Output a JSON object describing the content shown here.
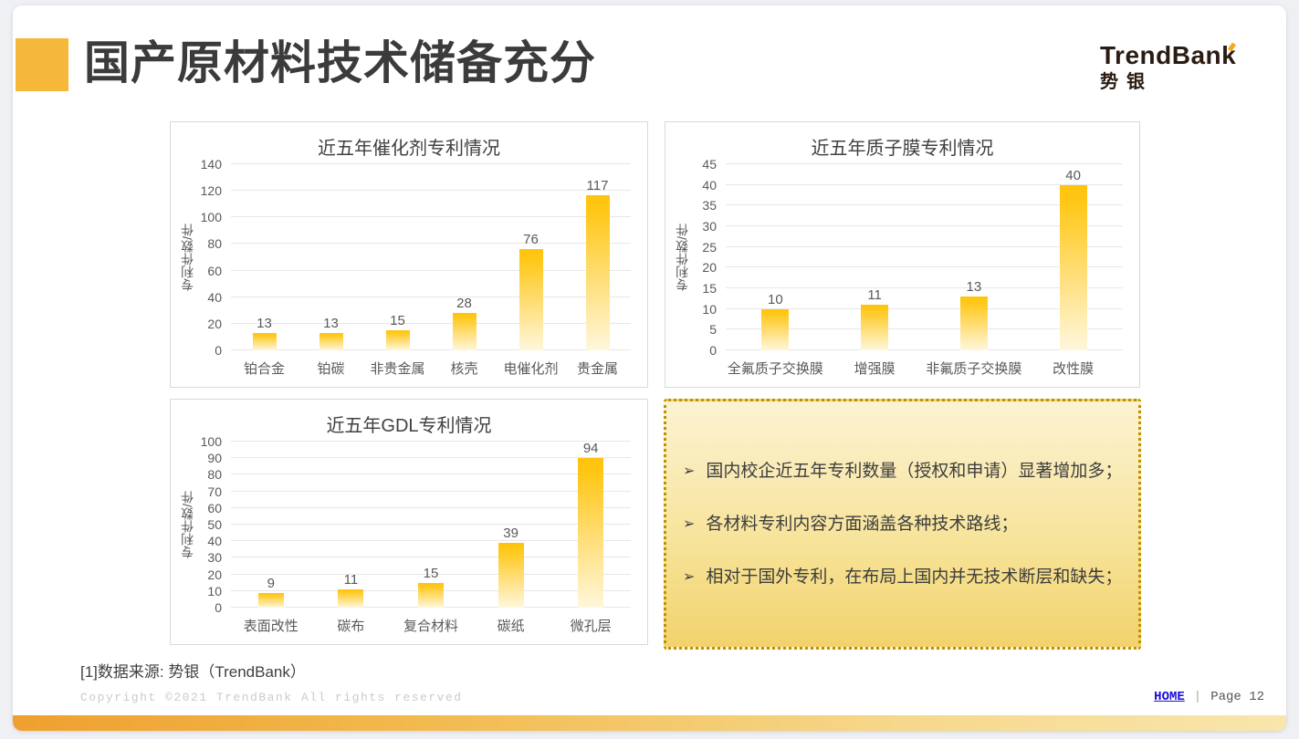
{
  "slide": {
    "title": "国产原材料技术储备充分",
    "logo": {
      "name": "TrendBank",
      "subtitle": "势银"
    },
    "footer": {
      "source": "[1]数据来源: 势银（TrendBank）",
      "copyright": "Copyright ©2021 TrendBank All rights reserved",
      "home_label": "HOME",
      "separator": "|",
      "page_label": "Page 12"
    },
    "colors": {
      "accent_yellow": "#F5B83B",
      "bar_gradient_top": "#FFC30D",
      "bar_gradient_bottom": "#FFF7DC",
      "note_border": "#BF9000",
      "note_bg_top": "#FCF3D3",
      "note_bg_bottom": "#F2D26C",
      "link_blue": "#1a0dd8",
      "bottom_bar_left": "#EFA02F",
      "bottom_bar_right": "#F8E6AC"
    }
  },
  "notes": {
    "items": [
      {
        "marker": "➢",
        "text": "国内校企近五年专利数量（授权和申请）显著增加多；"
      },
      {
        "marker": "➢",
        "text": "各材料专利内容方面涵盖各种技术路线；"
      },
      {
        "marker": "➢",
        "text": "相对于国外专利，在布局上国内并无技术断层和缺失；"
      }
    ]
  },
  "chart_data": [
    {
      "type": "bar",
      "title": "近五年催化剂专利情况",
      "xlabel": "",
      "ylabel": "专利件数/件",
      "categories": [
        "铂合金",
        "铂碳",
        "非贵金属",
        "核壳",
        "电催化剂",
        "贵金属"
      ],
      "values": [
        13,
        13,
        15,
        28,
        76,
        117
      ],
      "ylim": [
        0,
        140
      ],
      "ytick_step": 20,
      "grid": true,
      "legend": "none",
      "data_labels": true
    },
    {
      "type": "bar",
      "title": "近五年质子膜专利情况",
      "xlabel": "",
      "ylabel": "专利件数/件",
      "categories": [
        "全氟质子交换膜",
        "增强膜",
        "非氟质子交换膜",
        "改性膜"
      ],
      "values": [
        10,
        11,
        13,
        40
      ],
      "ylim": [
        0,
        45
      ],
      "ytick_step": 5,
      "grid": true,
      "legend": "none",
      "data_labels": true
    },
    {
      "type": "bar",
      "title": "近五年GDL专利情况",
      "xlabel": "",
      "ylabel": "专利件数/件",
      "categories": [
        "表面改性",
        "碳布",
        "复合材料",
        "碳纸",
        "微孔层"
      ],
      "values": [
        9,
        11,
        15,
        39,
        94
      ],
      "ylim": [
        0,
        100
      ],
      "ytick_step": 10,
      "grid": true,
      "legend": "none",
      "data_labels": true
    }
  ]
}
